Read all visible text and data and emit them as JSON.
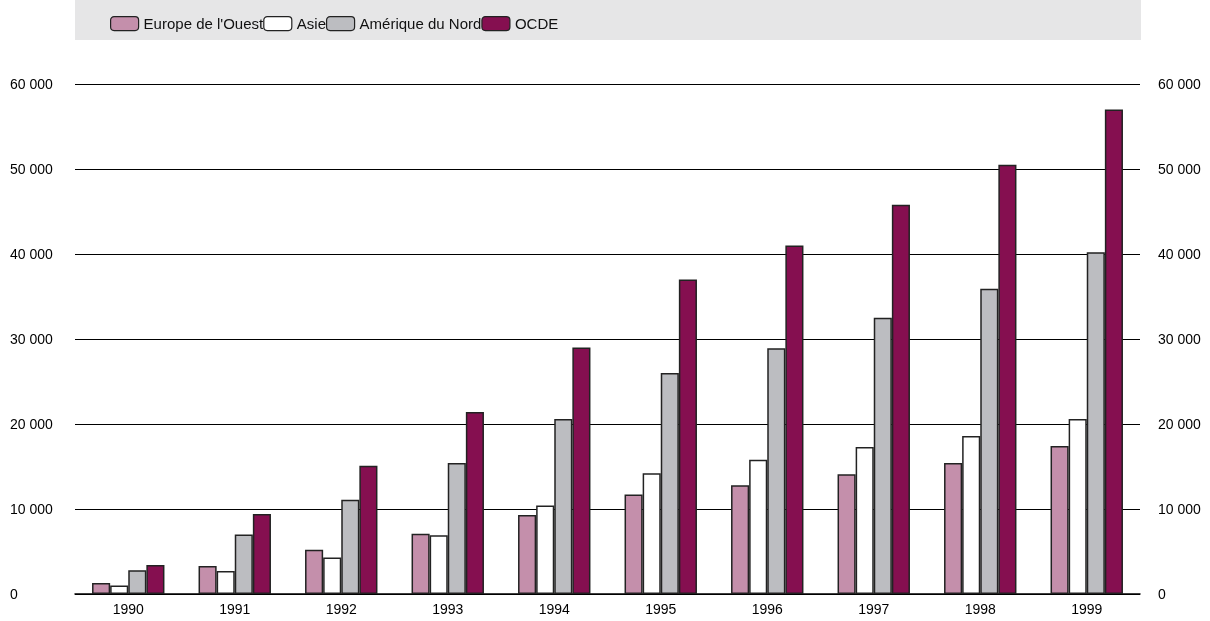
{
  "chart_data": {
    "type": "bar",
    "categories": [
      "1990",
      "1991",
      "1992",
      "1993",
      "1994",
      "1995",
      "1996",
      "1997",
      "1998",
      "1999"
    ],
    "series": [
      {
        "name": "Europe de l'Ouest",
        "color": "#c48fab",
        "values": [
          1300,
          3300,
          5200,
          7100,
          9300,
          11700,
          12800,
          14100,
          15400,
          17400
        ]
      },
      {
        "name": "Asie",
        "color": "#ffffff",
        "values": [
          1000,
          2700,
          4300,
          6900,
          10400,
          14200,
          15800,
          17300,
          18600,
          20600
        ]
      },
      {
        "name": "Amérique du Nord",
        "color": "#bcbdc1",
        "values": [
          2800,
          7000,
          11100,
          15400,
          20600,
          26000,
          28900,
          32500,
          35900,
          40200
        ]
      },
      {
        "name": "OCDE",
        "color": "#850f50",
        "values": [
          3400,
          9400,
          15100,
          21400,
          29000,
          37000,
          41000,
          45800,
          50500,
          57000
        ]
      }
    ],
    "ylim": [
      0,
      60000
    ],
    "yticks": [
      {
        "value": 0,
        "label": "0"
      },
      {
        "value": 10000,
        "label": "10 000"
      },
      {
        "value": 20000,
        "label": "20 000"
      },
      {
        "value": 30000,
        "label": "30 000"
      },
      {
        "value": 40000,
        "label": "40 000"
      },
      {
        "value": 50000,
        "label": "50 000"
      },
      {
        "value": 60000,
        "label": "60 000"
      }
    ],
    "y2lim": [
      0,
      60000
    ],
    "y2ticks": [
      {
        "value": 0,
        "label": "0"
      },
      {
        "value": 10000,
        "label": "10 000"
      },
      {
        "value": 20000,
        "label": "20 000"
      },
      {
        "value": 30000,
        "label": "30 000"
      },
      {
        "value": 40000,
        "label": "40 000"
      },
      {
        "value": 50000,
        "label": "50 000"
      },
      {
        "value": 60000,
        "label": "60 000"
      }
    ],
    "grid": "y",
    "legend": "top"
  }
}
